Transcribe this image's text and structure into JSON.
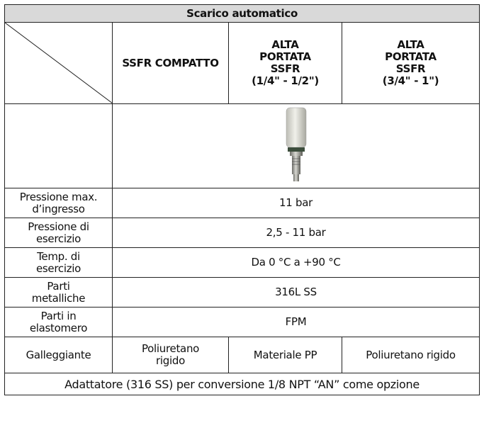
{
  "table": {
    "title": "Scarico automatico",
    "headers": [
      [
        "SSFR COMPATTO"
      ],
      [
        "ALTA",
        "PORTATA",
        "SSFR",
        "(1/4\" - 1/2\")"
      ],
      [
        "ALTA",
        "PORTATA",
        "SSFR",
        "(3/4\" - 1\")"
      ]
    ],
    "rows": [
      {
        "label": [
          "Pressione max.",
          "d’ingresso"
        ],
        "value": "11 bar"
      },
      {
        "label": [
          "Pressione di",
          "esercizio"
        ],
        "value": "2,5 - 11 bar"
      },
      {
        "label": [
          "Temp. di",
          "esercizio"
        ],
        "value": "Da 0 °C a +90 °C"
      },
      {
        "label": [
          "Parti",
          "metalliche"
        ],
        "value": "316L SS"
      },
      {
        "label": [
          "Parti in",
          "elastomero"
        ],
        "value": "FPM"
      }
    ],
    "float_row": {
      "label": "Galleggiante",
      "values": [
        [
          "Poliuretano",
          "rigido"
        ],
        [
          "Materiale PP"
        ],
        [
          "Poliuretano rigido"
        ]
      ]
    },
    "footer": "Adattatore (316 SS) per conversione 1/8 NPT “AN” come opzione"
  }
}
